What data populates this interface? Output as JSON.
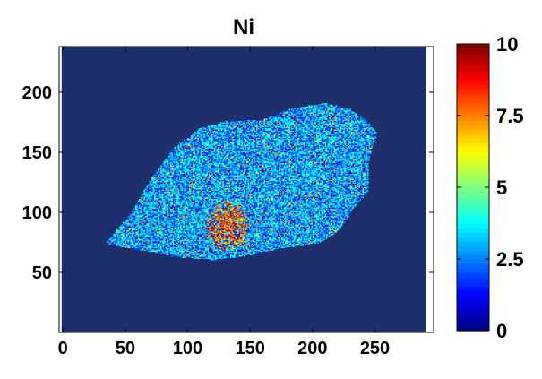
{
  "chart_data": {
    "type": "heatmap",
    "title": "Ni",
    "xlabel": "",
    "ylabel": "",
    "xlim": [
      -3,
      297
    ],
    "ylim": [
      0,
      238
    ],
    "x_ticks": [
      0,
      50,
      100,
      150,
      200,
      250
    ],
    "y_ticks": [
      50,
      100,
      150,
      200
    ],
    "colorbar": {
      "range": [
        0,
        10
      ],
      "ticks": [
        0,
        2.5,
        5,
        7.5,
        10
      ],
      "tick_labels": [
        "0",
        "2.5",
        "5",
        "7.5",
        "10"
      ],
      "colormap": "jet"
    },
    "background_value": 0,
    "sample_region": {
      "outline": [
        [
          35,
          75
        ],
        [
          55,
          100
        ],
        [
          72,
          130
        ],
        [
          90,
          155
        ],
        [
          110,
          170
        ],
        [
          132,
          176
        ],
        [
          160,
          177
        ],
        [
          182,
          186
        ],
        [
          210,
          191
        ],
        [
          230,
          186
        ],
        [
          245,
          175
        ],
        [
          252,
          165
        ],
        [
          248,
          155
        ],
        [
          245,
          140
        ],
        [
          245,
          118
        ],
        [
          232,
          102
        ],
        [
          222,
          85
        ],
        [
          205,
          74
        ],
        [
          175,
          70
        ],
        [
          150,
          64
        ],
        [
          120,
          60
        ],
        [
          90,
          63
        ],
        [
          60,
          69
        ],
        [
          40,
          72
        ]
      ],
      "typical_value_range": [
        1.5,
        4.5
      ],
      "hotspot": {
        "x_range": [
          115,
          150
        ],
        "y_range": [
          68,
          110
        ],
        "value_range": [
          6,
          10
        ]
      }
    }
  },
  "colors": {
    "background": "#1f2f6b",
    "frame": "#000000",
    "text": "#000000"
  }
}
